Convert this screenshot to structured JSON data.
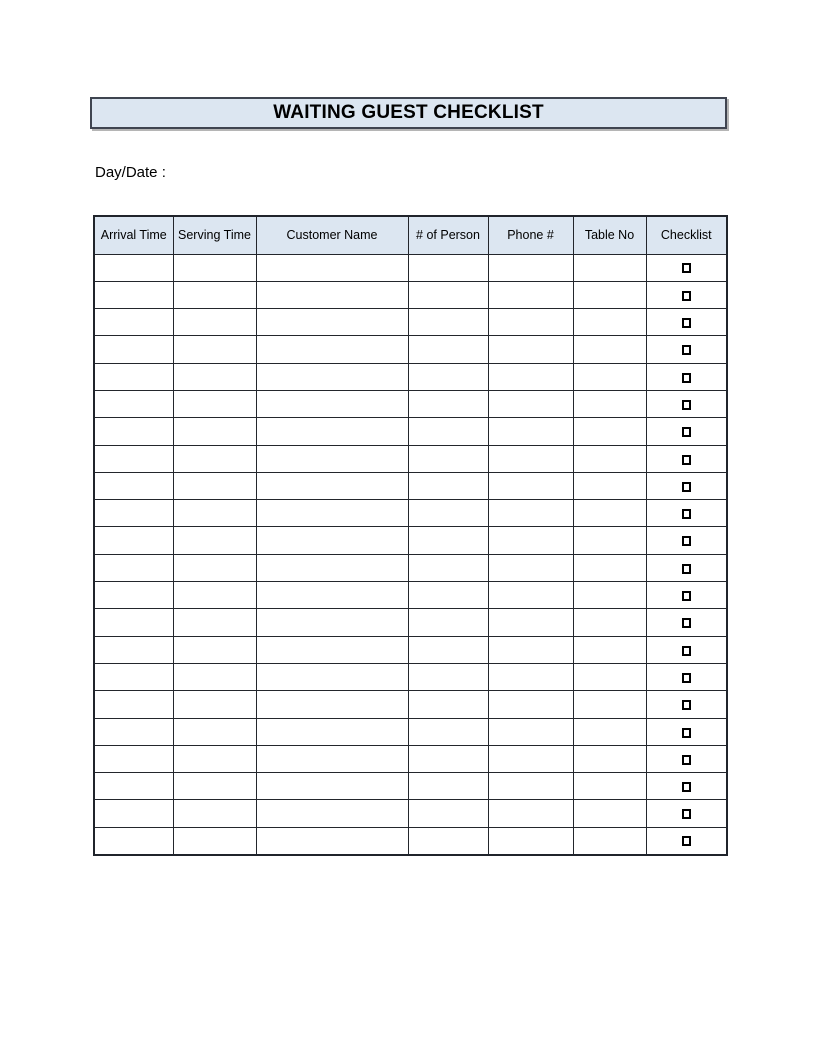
{
  "title_bar": {
    "title": "WAITING GUEST CHECKLIST",
    "background": "#dce6f1",
    "border_color": "#3f4450"
  },
  "day_date_label": "Day/Date :",
  "table": {
    "header_background": "#dce6f1",
    "grid_color": "#23262c",
    "columns": [
      {
        "key": "arrival_time",
        "label": "Arrival Time"
      },
      {
        "key": "serving_time",
        "label": "Serving Time"
      },
      {
        "key": "customer_name",
        "label": "Customer Name"
      },
      {
        "key": "num_person",
        "label": "# of Person"
      },
      {
        "key": "phone",
        "label": "Phone #"
      },
      {
        "key": "table_no",
        "label": "Table No"
      },
      {
        "key": "checklist",
        "label": "Checklist"
      }
    ],
    "checkbox_state_unchecked": "unchecked",
    "rows": [
      {
        "arrival_time": "",
        "serving_time": "",
        "customer_name": "",
        "num_person": "",
        "phone": "",
        "table_no": "",
        "checked": false
      },
      {
        "arrival_time": "",
        "serving_time": "",
        "customer_name": "",
        "num_person": "",
        "phone": "",
        "table_no": "",
        "checked": false
      },
      {
        "arrival_time": "",
        "serving_time": "",
        "customer_name": "",
        "num_person": "",
        "phone": "",
        "table_no": "",
        "checked": false
      },
      {
        "arrival_time": "",
        "serving_time": "",
        "customer_name": "",
        "num_person": "",
        "phone": "",
        "table_no": "",
        "checked": false
      },
      {
        "arrival_time": "",
        "serving_time": "",
        "customer_name": "",
        "num_person": "",
        "phone": "",
        "table_no": "",
        "checked": false
      },
      {
        "arrival_time": "",
        "serving_time": "",
        "customer_name": "",
        "num_person": "",
        "phone": "",
        "table_no": "",
        "checked": false
      },
      {
        "arrival_time": "",
        "serving_time": "",
        "customer_name": "",
        "num_person": "",
        "phone": "",
        "table_no": "",
        "checked": false
      },
      {
        "arrival_time": "",
        "serving_time": "",
        "customer_name": "",
        "num_person": "",
        "phone": "",
        "table_no": "",
        "checked": false
      },
      {
        "arrival_time": "",
        "serving_time": "",
        "customer_name": "",
        "num_person": "",
        "phone": "",
        "table_no": "",
        "checked": false
      },
      {
        "arrival_time": "",
        "serving_time": "",
        "customer_name": "",
        "num_person": "",
        "phone": "",
        "table_no": "",
        "checked": false
      },
      {
        "arrival_time": "",
        "serving_time": "",
        "customer_name": "",
        "num_person": "",
        "phone": "",
        "table_no": "",
        "checked": false
      },
      {
        "arrival_time": "",
        "serving_time": "",
        "customer_name": "",
        "num_person": "",
        "phone": "",
        "table_no": "",
        "checked": false
      },
      {
        "arrival_time": "",
        "serving_time": "",
        "customer_name": "",
        "num_person": "",
        "phone": "",
        "table_no": "",
        "checked": false
      },
      {
        "arrival_time": "",
        "serving_time": "",
        "customer_name": "",
        "num_person": "",
        "phone": "",
        "table_no": "",
        "checked": false
      },
      {
        "arrival_time": "",
        "serving_time": "",
        "customer_name": "",
        "num_person": "",
        "phone": "",
        "table_no": "",
        "checked": false
      },
      {
        "arrival_time": "",
        "serving_time": "",
        "customer_name": "",
        "num_person": "",
        "phone": "",
        "table_no": "",
        "checked": false
      },
      {
        "arrival_time": "",
        "serving_time": "",
        "customer_name": "",
        "num_person": "",
        "phone": "",
        "table_no": "",
        "checked": false
      },
      {
        "arrival_time": "",
        "serving_time": "",
        "customer_name": "",
        "num_person": "",
        "phone": "",
        "table_no": "",
        "checked": false
      },
      {
        "arrival_time": "",
        "serving_time": "",
        "customer_name": "",
        "num_person": "",
        "phone": "",
        "table_no": "",
        "checked": false
      },
      {
        "arrival_time": "",
        "serving_time": "",
        "customer_name": "",
        "num_person": "",
        "phone": "",
        "table_no": "",
        "checked": false
      },
      {
        "arrival_time": "",
        "serving_time": "",
        "customer_name": "",
        "num_person": "",
        "phone": "",
        "table_no": "",
        "checked": false
      },
      {
        "arrival_time": "",
        "serving_time": "",
        "customer_name": "",
        "num_person": "",
        "phone": "",
        "table_no": "",
        "checked": false
      }
    ]
  }
}
